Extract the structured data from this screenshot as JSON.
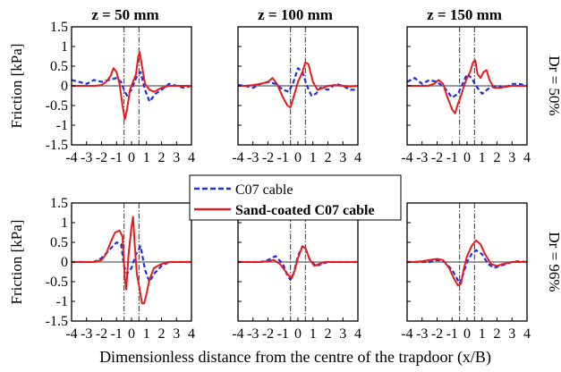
{
  "figure": {
    "xlabel": "Dimensionless distance from the centre of the trapdoor (x/B)",
    "ylabel": "Friction [kPa]",
    "col_titles": [
      "z = 50 mm",
      "z = 100 mm",
      "z = 150 mm"
    ],
    "row_labels": [
      "Dr = 50%",
      "Dr = 96%"
    ],
    "legend": [
      "C07 cable",
      "Sand-coated C07 cable"
    ],
    "xlim": [
      -4,
      4
    ],
    "ylim": [
      -1.5,
      1.5
    ],
    "xticks": [
      "-4",
      "-3",
      "-2",
      "-1",
      "0",
      "1",
      "2",
      "3",
      "4"
    ],
    "yticks": [
      "1.5",
      "1",
      "0.5",
      "0",
      "-0.5",
      "-1",
      "-1.5"
    ],
    "ytick_values": [
      1.5,
      1,
      0.5,
      0,
      -0.5,
      -1,
      -1.5
    ],
    "colors": {
      "c07": "#1f2ee6",
      "sand": "#e81b1b",
      "zero": "#7a7a7a",
      "edge": "#555555"
    }
  },
  "chart_data": [
    {
      "type": "line",
      "title": "z = 50 mm",
      "row": "Dr = 50%",
      "xlim": [
        -4,
        4
      ],
      "ylim": [
        -1.5,
        1.5
      ],
      "edges": [
        -0.5,
        0.5
      ],
      "series": [
        {
          "name": "C07 cable",
          "x": [
            -4,
            -3.5,
            -3,
            -2.5,
            -2,
            -1.5,
            -1,
            -0.7,
            -0.5,
            -0.3,
            0,
            0.3,
            0.6,
            0.9,
            1.2,
            1.6,
            2,
            2.5,
            3,
            3.5,
            4
          ],
          "y": [
            0.15,
            0.1,
            0.05,
            0.15,
            0.1,
            0.15,
            0.2,
            0.1,
            -0.1,
            -0.25,
            -0.1,
            0.2,
            0.35,
            -0.1,
            -0.4,
            -0.2,
            -0.1,
            0.05,
            0,
            -0.05,
            0
          ]
        },
        {
          "name": "Sand-coated C07 cable",
          "x": [
            -4,
            -3.5,
            -3,
            -2.5,
            -2,
            -1.7,
            -1.4,
            -1.2,
            -1,
            -0.8,
            -0.6,
            -0.45,
            -0.3,
            -0.1,
            0.1,
            0.3,
            0.45,
            0.55,
            0.7,
            0.9,
            1.2,
            1.5,
            2,
            2.5,
            3,
            3.5,
            4
          ],
          "y": [
            0,
            0,
            0,
            0,
            0.02,
            0.1,
            0.25,
            0.45,
            0.35,
            0.05,
            -0.5,
            -0.85,
            -0.6,
            -0.1,
            0.1,
            0.3,
            0.75,
            0.85,
            0.5,
            0.05,
            -0.1,
            -0.15,
            -0.05,
            0,
            0,
            0,
            0
          ]
        }
      ]
    },
    {
      "type": "line",
      "title": "z = 100 mm",
      "row": "Dr = 50%",
      "xlim": [
        -4,
        4
      ],
      "ylim": [
        -1.5,
        1.5
      ],
      "edges": [
        -0.5,
        0.5
      ],
      "series": [
        {
          "name": "C07 cable",
          "x": [
            -4,
            -3.5,
            -3,
            -2.5,
            -2,
            -1.5,
            -1,
            -0.6,
            -0.3,
            0,
            0.3,
            0.6,
            0.9,
            1.2,
            1.5,
            2,
            2.5,
            3,
            3.5,
            4
          ],
          "y": [
            0.02,
            0,
            -0.05,
            0.05,
            0.1,
            0.05,
            -0.1,
            -0.15,
            0.1,
            0.45,
            0.35,
            0,
            -0.25,
            -0.2,
            -0.05,
            -0.1,
            0.05,
            0,
            -0.1,
            -0.1
          ]
        },
        {
          "name": "Sand-coated C07 cable",
          "x": [
            -4,
            -3.5,
            -3,
            -2.5,
            -2,
            -1.7,
            -1.4,
            -1,
            -0.7,
            -0.5,
            -0.3,
            0,
            0.3,
            0.5,
            0.7,
            1,
            1.3,
            1.7,
            2,
            2.5,
            3,
            3.5,
            4
          ],
          "y": [
            0,
            0,
            0.02,
            0.05,
            0.1,
            0.2,
            0.05,
            -0.3,
            -0.5,
            -0.55,
            -0.3,
            0.1,
            0.35,
            0.6,
            0.55,
            0.1,
            -0.1,
            -0.05,
            0,
            0.02,
            0,
            -0.02,
            0
          ]
        }
      ]
    },
    {
      "type": "line",
      "title": "z = 150 mm",
      "row": "Dr = 50%",
      "xlim": [
        -4,
        4
      ],
      "ylim": [
        -1.5,
        1.5
      ],
      "edges": [
        -0.5,
        0.5
      ],
      "series": [
        {
          "name": "C07 cable",
          "x": [
            -4,
            -3.5,
            -3,
            -2.5,
            -2,
            -1.5,
            -1,
            -0.6,
            -0.3,
            0,
            0.3,
            0.6,
            1,
            1.5,
            2,
            2.5,
            3,
            3.5,
            4
          ],
          "y": [
            0.1,
            0.2,
            0.05,
            0.15,
            0.1,
            -0.05,
            -0.3,
            -0.2,
            0.05,
            0.3,
            0.2,
            0,
            -0.2,
            -0.05,
            0,
            -0.05,
            0.05,
            0.05,
            0
          ]
        },
        {
          "name": "Sand-coated C07 cable",
          "x": [
            -4,
            -3.5,
            -3,
            -2.6,
            -2.2,
            -1.9,
            -1.6,
            -1.3,
            -1.1,
            -1,
            -0.8,
            -0.6,
            -0.4,
            -0.2,
            0,
            0.2,
            0.4,
            0.55,
            0.7,
            0.9,
            1.1,
            1.3,
            1.5,
            1.8,
            2.2,
            2.6,
            3,
            3.5,
            4
          ],
          "y": [
            0,
            0,
            0,
            0,
            0.05,
            0.15,
            0.05,
            -0.3,
            -0.5,
            -0.6,
            -0.7,
            -0.45,
            -0.25,
            0,
            0.2,
            0.35,
            0.6,
            0.65,
            0.3,
            0.2,
            0.35,
            0.4,
            0.15,
            -0.05,
            -0.05,
            -0.02,
            0,
            0,
            0
          ]
        }
      ]
    },
    {
      "type": "line",
      "title": "z = 50 mm",
      "row": "Dr = 96%",
      "xlim": [
        -4,
        4
      ],
      "ylim": [
        -1.5,
        1.5
      ],
      "edges": [
        -0.5,
        0.5
      ],
      "series": [
        {
          "name": "C07 cable",
          "x": [
            -4,
            -3.5,
            -3,
            -2.5,
            -2,
            -1.5,
            -1,
            -0.7,
            -0.5,
            -0.3,
            0,
            0.3,
            0.6,
            0.9,
            1.2,
            1.5,
            2,
            2.5,
            3,
            3.5,
            4
          ],
          "y": [
            0,
            0,
            0,
            0,
            0.1,
            0.3,
            0.5,
            0.45,
            -0.1,
            -0.3,
            -0.15,
            0.2,
            0.4,
            -0.2,
            -0.5,
            -0.3,
            -0.1,
            0,
            0,
            0,
            0
          ]
        },
        {
          "name": "Sand-coated C07 cable",
          "x": [
            -4,
            -3.5,
            -3,
            -2.5,
            -2,
            -1.7,
            -1.4,
            -1.1,
            -0.8,
            -0.6,
            -0.45,
            -0.35,
            -0.2,
            0,
            0.1,
            0.2,
            0.35,
            0.5,
            0.7,
            0.85,
            1,
            1.2,
            1.5,
            2,
            2.5,
            3,
            3.5,
            4
          ],
          "y": [
            0,
            0,
            0,
            0,
            0.05,
            0.2,
            0.5,
            0.75,
            0.8,
            0.65,
            -0.4,
            -0.7,
            0.2,
            0.9,
            1.15,
            0.5,
            -0.3,
            -0.6,
            -1.05,
            -1.05,
            -0.8,
            -0.45,
            -0.15,
            -0.05,
            0,
            0,
            0,
            0
          ]
        }
      ]
    },
    {
      "type": "line",
      "title": "z = 100 mm",
      "row": "Dr = 96%",
      "xlim": [
        -4,
        4
      ],
      "ylim": [
        -1.5,
        1.5
      ],
      "edges": [
        -0.5,
        0.5
      ],
      "series": [
        {
          "name": "C07 cable",
          "x": [
            -4,
            -3.5,
            -3,
            -2.5,
            -2,
            -1.5,
            -1,
            -0.7,
            -0.5,
            -0.3,
            0,
            0.3,
            0.5,
            0.8,
            1.2,
            1.6,
            2,
            2.5,
            3,
            3.5,
            4
          ],
          "y": [
            0,
            0,
            0,
            0,
            0.05,
            0.15,
            -0.05,
            -0.35,
            -0.45,
            -0.3,
            0.15,
            0.4,
            0.35,
            0.05,
            -0.1,
            -0.05,
            0,
            0,
            0,
            0,
            0
          ]
        },
        {
          "name": "Sand-coated C07 cable",
          "x": [
            -4,
            -3.5,
            -3,
            -2.5,
            -2,
            -1.6,
            -1.2,
            -0.9,
            -0.6,
            -0.4,
            -0.2,
            0,
            0.3,
            0.5,
            0.8,
            1.1,
            1.4,
            1.8,
            2.5,
            3,
            3.5,
            4
          ],
          "y": [
            0,
            0,
            0,
            0,
            0.02,
            0.05,
            -0.05,
            -0.2,
            -0.35,
            -0.4,
            -0.2,
            0.1,
            0.4,
            0.35,
            0.05,
            -0.1,
            -0.05,
            0,
            0,
            0,
            0,
            0
          ]
        }
      ]
    },
    {
      "type": "line",
      "title": "z = 150 mm",
      "row": "Dr = 96%",
      "xlim": [
        -4,
        4
      ],
      "ylim": [
        -1.5,
        1.5
      ],
      "edges": [
        -0.5,
        0.5
      ],
      "series": [
        {
          "name": "C07 cable",
          "x": [
            -4,
            -3.5,
            -3,
            -2.5,
            -2,
            -1.5,
            -1,
            -0.7,
            -0.5,
            -0.3,
            0,
            0.3,
            0.6,
            1,
            1.4,
            1.8,
            2.2,
            2.6,
            3,
            3.5,
            4
          ],
          "y": [
            0,
            0,
            0,
            0,
            0.05,
            0,
            -0.2,
            -0.4,
            -0.55,
            -0.35,
            0,
            0.2,
            0.3,
            0.2,
            -0.05,
            -0.15,
            -0.1,
            -0.05,
            0,
            0.02,
            0
          ]
        },
        {
          "name": "Sand-coated C07 cable",
          "x": [
            -4,
            -3.5,
            -3,
            -2.5,
            -2,
            -1.6,
            -1.2,
            -0.9,
            -0.6,
            -0.4,
            -0.2,
            0,
            0.3,
            0.6,
            0.9,
            1.2,
            1.6,
            2,
            2.4,
            3,
            3.5,
            4
          ],
          "y": [
            0,
            0,
            0.02,
            0.05,
            0.08,
            0.05,
            -0.15,
            -0.4,
            -0.6,
            -0.55,
            -0.15,
            0.15,
            0.4,
            0.55,
            0.45,
            0.2,
            -0.05,
            -0.1,
            -0.05,
            0,
            0,
            0
          ]
        }
      ]
    }
  ]
}
